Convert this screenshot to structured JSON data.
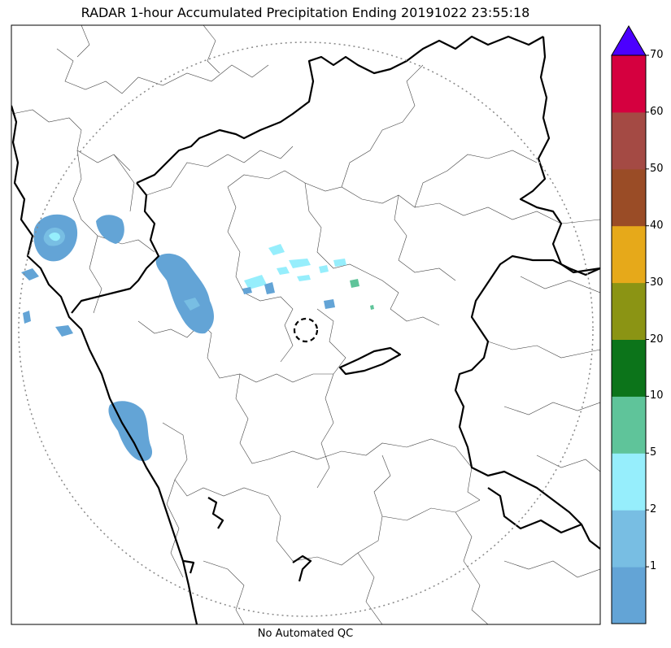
{
  "title": "RADAR 1-hour Accumulated Precipitation Ending 20191022 23:55:18",
  "subtitle": "No Automated QC",
  "colorbar": {
    "levels": [
      {
        "label": "1",
        "value": 1
      },
      {
        "label": "2",
        "value": 2
      },
      {
        "label": "5",
        "value": 5
      },
      {
        "label": "10",
        "value": 10
      },
      {
        "label": "20",
        "value": 20
      },
      {
        "label": "30",
        "value": 30
      },
      {
        "label": "40",
        "value": 40
      },
      {
        "label": "50",
        "value": 50
      },
      {
        "label": "60",
        "value": 60
      },
      {
        "label": "70",
        "value": 70
      }
    ],
    "colors": [
      "#63a4d6",
      "#78bee3",
      "#96eefc",
      "#5fc49a",
      "#0c741a",
      "#8b9414",
      "#e6a91a",
      "#9a4c26",
      "#a44a44",
      "#d5003f"
    ],
    "extend_color": "#4b00ff"
  },
  "colors": {
    "boundary_major": "#000000",
    "boundary_minor": "#444444",
    "range_ring": "#888888"
  }
}
